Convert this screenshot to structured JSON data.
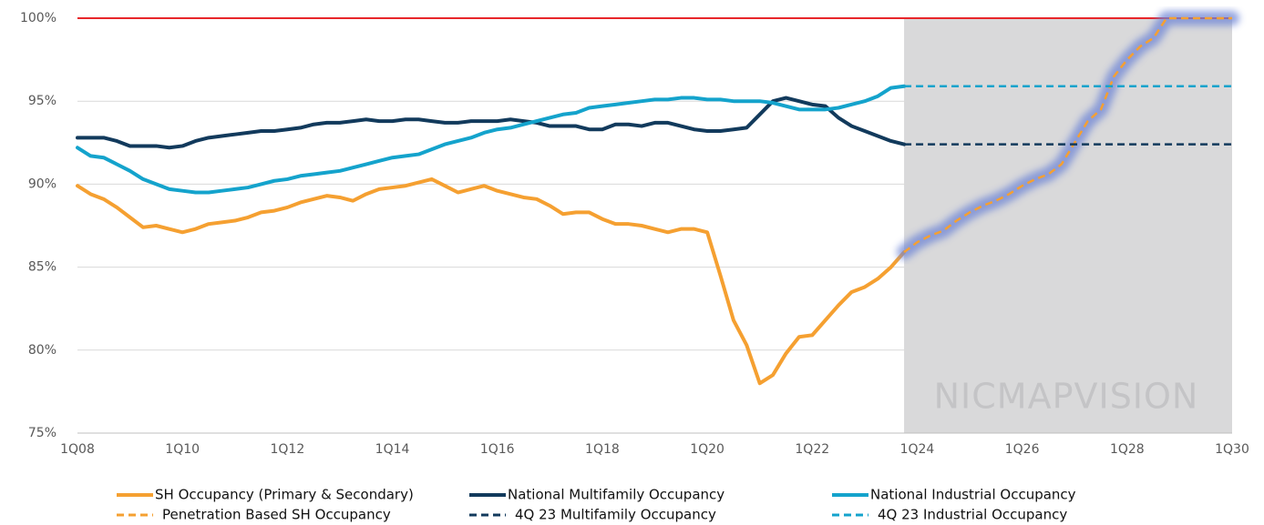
{
  "chart_data": {
    "type": "line",
    "categories": [
      "1Q08",
      null,
      null,
      null,
      null,
      null,
      null,
      null,
      "1Q10",
      null,
      null,
      null,
      null,
      null,
      null,
      null,
      "1Q12",
      null,
      null,
      null,
      null,
      null,
      null,
      null,
      "1Q14",
      null,
      null,
      null,
      null,
      null,
      null,
      null,
      "1Q16",
      null,
      null,
      null,
      null,
      null,
      null,
      null,
      "1Q18",
      null,
      null,
      null,
      null,
      null,
      null,
      null,
      "1Q20",
      null,
      null,
      null,
      null,
      null,
      null,
      null,
      "1Q22",
      null,
      null,
      null,
      null,
      null,
      null,
      null,
      "1Q24",
      null,
      null,
      null,
      null,
      null,
      null,
      null,
      "1Q26",
      null,
      null,
      null,
      null,
      null,
      null,
      null,
      "1Q28",
      null,
      null,
      null,
      null,
      null,
      null,
      null,
      "1Q30"
    ],
    "ylim": [
      75,
      100
    ],
    "yticks": [
      {
        "value": 75,
        "label": "75%"
      },
      {
        "value": 80,
        "label": "80%"
      },
      {
        "value": 85,
        "label": "85%"
      },
      {
        "value": 90,
        "label": "90%"
      },
      {
        "value": 95,
        "label": "95%"
      },
      {
        "value": 100,
        "label": "100%"
      }
    ],
    "grid": true,
    "reference_line": {
      "value": 100,
      "color": "#e8262a"
    },
    "shade_from": 63,
    "watermark": "NICMAPVISION",
    "legend": "bottom",
    "series": [
      {
        "name": "SH Occupancy (Primary & Secondary)",
        "color": "#f5a031",
        "dashed": false,
        "values": [
          89.9,
          89.4,
          89.1,
          88.6,
          88.0,
          87.4,
          87.5,
          87.3,
          87.1,
          87.3,
          87.6,
          87.7,
          87.8,
          88.0,
          88.3,
          88.4,
          88.6,
          88.9,
          89.1,
          89.3,
          89.2,
          89.0,
          89.4,
          89.7,
          89.8,
          89.9,
          90.1,
          90.3,
          89.9,
          89.5,
          89.7,
          89.9,
          89.6,
          89.4,
          89.2,
          89.1,
          88.7,
          88.2,
          88.3,
          88.3,
          87.9,
          87.6,
          87.6,
          87.5,
          87.3,
          87.1,
          87.3,
          87.3,
          87.1,
          84.5,
          81.8,
          80.3,
          78.0,
          78.5,
          79.8,
          80.8,
          80.9,
          81.8,
          82.7,
          83.5,
          83.8,
          84.3,
          85.0,
          85.9,
          null,
          null,
          null,
          null,
          null,
          null,
          null,
          null,
          null,
          null,
          null,
          null,
          null,
          null,
          null,
          null,
          null,
          null,
          null,
          null,
          null,
          null,
          null,
          null,
          null
        ]
      },
      {
        "name": "National Multifamily Occupancy",
        "color": "#123a5c",
        "dashed": false,
        "values": [
          92.8,
          92.8,
          92.8,
          92.6,
          92.3,
          92.3,
          92.3,
          92.2,
          92.3,
          92.6,
          92.8,
          92.9,
          93.0,
          93.1,
          93.2,
          93.2,
          93.3,
          93.4,
          93.6,
          93.7,
          93.7,
          93.8,
          93.9,
          93.8,
          93.8,
          93.9,
          93.9,
          93.8,
          93.7,
          93.7,
          93.8,
          93.8,
          93.8,
          93.9,
          93.8,
          93.7,
          93.5,
          93.5,
          93.5,
          93.3,
          93.3,
          93.6,
          93.6,
          93.5,
          93.7,
          93.7,
          93.5,
          93.3,
          93.2,
          93.2,
          93.3,
          93.4,
          94.2,
          95.0,
          95.2,
          95.0,
          94.8,
          94.7,
          94.0,
          93.5,
          93.2,
          92.9,
          92.6,
          92.4,
          null,
          null,
          null,
          null,
          null,
          null,
          null,
          null,
          null,
          null,
          null,
          null,
          null,
          null,
          null,
          null,
          null,
          null,
          null,
          null,
          null,
          null,
          null,
          null,
          null
        ]
      },
      {
        "name": "National Industrial Occupancy",
        "color": "#14a3cc",
        "dashed": false,
        "values": [
          92.2,
          91.7,
          91.6,
          91.2,
          90.8,
          90.3,
          90.0,
          89.7,
          89.6,
          89.5,
          89.5,
          89.6,
          89.7,
          89.8,
          90.0,
          90.2,
          90.3,
          90.5,
          90.6,
          90.7,
          90.8,
          91.0,
          91.2,
          91.4,
          91.6,
          91.7,
          91.8,
          92.1,
          92.4,
          92.6,
          92.8,
          93.1,
          93.3,
          93.4,
          93.6,
          93.8,
          94.0,
          94.2,
          94.3,
          94.6,
          94.7,
          94.8,
          94.9,
          95.0,
          95.1,
          95.1,
          95.2,
          95.2,
          95.1,
          95.1,
          95.0,
          95.0,
          95.0,
          94.9,
          94.7,
          94.5,
          94.5,
          94.5,
          94.6,
          94.8,
          95.0,
          95.3,
          95.8,
          95.9,
          null,
          null,
          null,
          null,
          null,
          null,
          null,
          null,
          null,
          null,
          null,
          null,
          null,
          null,
          null,
          null,
          null,
          null,
          null,
          null,
          null,
          null,
          null,
          null,
          null
        ]
      },
      {
        "name": "Penetration Based SH Occupancy",
        "color": "#f5a031",
        "dashed": true,
        "glow": "#6f86d6",
        "values": [
          null,
          null,
          null,
          null,
          null,
          null,
          null,
          null,
          null,
          null,
          null,
          null,
          null,
          null,
          null,
          null,
          null,
          null,
          null,
          null,
          null,
          null,
          null,
          null,
          null,
          null,
          null,
          null,
          null,
          null,
          null,
          null,
          null,
          null,
          null,
          null,
          null,
          null,
          null,
          null,
          null,
          null,
          null,
          null,
          null,
          null,
          null,
          null,
          null,
          null,
          null,
          null,
          null,
          null,
          null,
          null,
          null,
          null,
          null,
          null,
          null,
          null,
          null,
          85.9,
          86.5,
          86.9,
          87.2,
          87.8,
          88.3,
          88.7,
          89.0,
          89.4,
          89.9,
          90.3,
          90.6,
          91.2,
          92.5,
          93.8,
          94.5,
          96.5,
          97.5,
          98.3,
          98.8,
          100,
          100,
          100,
          100,
          100,
          100
        ]
      },
      {
        "name": "4Q 23 Multifamily Occupancy",
        "color": "#123a5c",
        "dashed": true,
        "values": [
          null,
          null,
          null,
          null,
          null,
          null,
          null,
          null,
          null,
          null,
          null,
          null,
          null,
          null,
          null,
          null,
          null,
          null,
          null,
          null,
          null,
          null,
          null,
          null,
          null,
          null,
          null,
          null,
          null,
          null,
          null,
          null,
          null,
          null,
          null,
          null,
          null,
          null,
          null,
          null,
          null,
          null,
          null,
          null,
          null,
          null,
          null,
          null,
          null,
          null,
          null,
          null,
          null,
          null,
          null,
          null,
          null,
          null,
          null,
          null,
          null,
          null,
          null,
          92.4,
          92.4,
          92.4,
          92.4,
          92.4,
          92.4,
          92.4,
          92.4,
          92.4,
          92.4,
          92.4,
          92.4,
          92.4,
          92.4,
          92.4,
          92.4,
          92.4,
          92.4,
          92.4,
          92.4,
          92.4,
          92.4,
          92.4,
          92.4,
          92.4,
          92.4
        ]
      },
      {
        "name": "4Q 23 Industrial Occupancy",
        "color": "#14a3cc",
        "dashed": true,
        "values": [
          null,
          null,
          null,
          null,
          null,
          null,
          null,
          null,
          null,
          null,
          null,
          null,
          null,
          null,
          null,
          null,
          null,
          null,
          null,
          null,
          null,
          null,
          null,
          null,
          null,
          null,
          null,
          null,
          null,
          null,
          null,
          null,
          null,
          null,
          null,
          null,
          null,
          null,
          null,
          null,
          null,
          null,
          null,
          null,
          null,
          null,
          null,
          null,
          null,
          null,
          null,
          null,
          null,
          null,
          null,
          null,
          null,
          null,
          null,
          null,
          null,
          null,
          null,
          95.9,
          95.9,
          95.9,
          95.9,
          95.9,
          95.9,
          95.9,
          95.9,
          95.9,
          95.9,
          95.9,
          95.9,
          95.9,
          95.9,
          95.9,
          95.9,
          95.9,
          95.9,
          95.9,
          95.9,
          95.9,
          95.9,
          95.9,
          95.9,
          95.9,
          95.9
        ]
      }
    ]
  }
}
